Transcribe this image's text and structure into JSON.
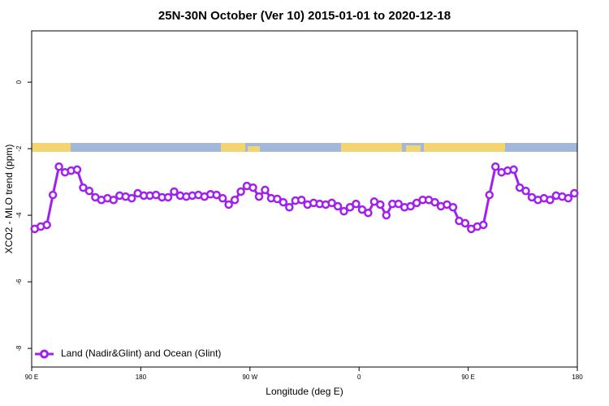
{
  "chart_data": {
    "type": "line",
    "title": "25N-30N October (Ver 10)   2015-01-01 to 2020-12-18",
    "x_label": "Longitude (deg E)",
    "y_label": "XCO2 - MLO trend (ppm)",
    "xlim": [
      90,
      540
    ],
    "ylim": [
      -8.56,
      1.54
    ],
    "xticks": [
      {
        "value": 90,
        "label": "90 E"
      },
      180,
      {
        "value": 270,
        "label": "90 W"
      },
      {
        "value": 360,
        "label": "0"
      },
      {
        "value": 450,
        "label": "90 E"
      },
      {
        "value": 540,
        "label": "180"
      }
    ],
    "yticks": [
      -8,
      -6,
      -4,
      -2,
      0
    ],
    "legend": "bottom-left",
    "x": [
      92.5,
      97.5,
      102.5,
      107.5,
      112.5,
      117.5,
      122.5,
      127.5,
      132.5,
      137.5,
      142.5,
      147.5,
      152.5,
      157.5,
      162.5,
      167.5,
      172.5,
      177.5,
      182.5,
      187.5,
      192.5,
      197.5,
      202.5,
      207.5,
      212.5,
      217.5,
      222.5,
      227.5,
      232.5,
      237.5,
      242.5,
      247.5,
      252.5,
      257.5,
      262.5,
      267.5,
      272.5,
      277.5,
      282.5,
      287.5,
      292.5,
      297.5,
      302.5,
      307.5,
      312.5,
      317.5,
      322.5,
      327.5,
      332.5,
      337.5,
      342.5,
      347.5,
      352.5,
      357.5,
      362.5,
      367.5,
      372.5,
      377.5,
      382.5,
      387.5,
      392.5,
      397.5,
      402.5,
      407.5,
      412.5,
      417.5,
      422.5,
      427.5,
      432.5,
      437.5,
      442.5,
      447.5,
      452.5,
      457.5,
      462.5,
      467.5,
      472.5,
      477.5,
      482.5,
      487.5,
      492.5,
      497.5,
      502.5,
      507.5,
      512.5,
      517.5,
      522.5,
      527.5,
      532.5,
      537.5
    ],
    "series": [
      {
        "name": "Land (Nadir&Glint) and Ocean (Glint)",
        "color": "#a020f0",
        "values": [
          -4.41,
          -4.34,
          -4.29,
          -3.39,
          -2.54,
          -2.71,
          -2.66,
          -2.63,
          -3.17,
          -3.27,
          -3.46,
          -3.54,
          -3.49,
          -3.54,
          -3.41,
          -3.44,
          -3.49,
          -3.34,
          -3.41,
          -3.41,
          -3.39,
          -3.46,
          -3.46,
          -3.29,
          -3.41,
          -3.44,
          -3.41,
          -3.39,
          -3.44,
          -3.37,
          -3.39,
          -3.49,
          -3.68,
          -3.54,
          -3.29,
          -3.12,
          -3.17,
          -3.44,
          -3.24,
          -3.49,
          -3.51,
          -3.61,
          -3.76,
          -3.56,
          -3.54,
          -3.68,
          -3.63,
          -3.66,
          -3.68,
          -3.63,
          -3.73,
          -3.88,
          -3.76,
          -3.66,
          -3.83,
          -3.93,
          -3.59,
          -3.68,
          -4.0,
          -3.66,
          -3.66,
          -3.76,
          -3.73,
          -3.63,
          -3.54,
          -3.54,
          -3.61,
          -3.73,
          -3.68,
          -3.76,
          -4.17,
          -4.24,
          -4.41,
          -4.34,
          -4.29,
          -3.39,
          -2.54,
          -2.71,
          -2.66,
          -2.63,
          -3.17,
          -3.27,
          -3.46,
          -3.54,
          -3.49,
          -3.54,
          -3.41,
          -3.44,
          -3.49,
          -3.34
        ]
      }
    ]
  }
}
